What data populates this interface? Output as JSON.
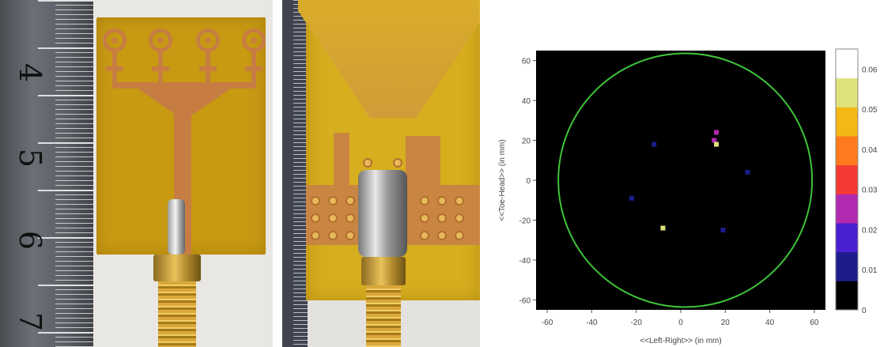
{
  "photos": {
    "front": {
      "ruler_numbers": [
        "4",
        "5",
        "6",
        "7"
      ]
    }
  },
  "colors": {
    "plot_background": "#000000",
    "circle": "#3ec43a"
  },
  "chart_data": {
    "type": "heatmap",
    "title": "",
    "xlabel": "<<Left-Right>> (in mm)",
    "ylabel": "<<Toe-Head>> (in mm)",
    "xlim": [
      -65,
      65
    ],
    "ylim": [
      -65,
      65
    ],
    "xticks": [
      -60,
      -40,
      -20,
      0,
      20,
      40,
      60
    ],
    "yticks": [
      -60,
      -40,
      -20,
      0,
      20,
      40,
      60
    ],
    "grid": false,
    "outline_circle": {
      "center": [
        2,
        0
      ],
      "radius": 57,
      "color": "#3ec43a"
    },
    "colorbar": {
      "range": [
        0,
        0.065
      ],
      "ticks": [
        0,
        0.01,
        0.02,
        0.03,
        0.04,
        0.05,
        0.06
      ],
      "tick_labels": [
        "0",
        "0.01",
        "0.02",
        "0.03",
        "0.04",
        "0.05",
        "0.06"
      ],
      "colors": [
        "#000000",
        "#1c1c8c",
        "#4a1fd0",
        "#b22ab0",
        "#f43a35",
        "#ff7a1c",
        "#f3b815",
        "#dfe27a",
        "#ffffff"
      ]
    },
    "points": [
      {
        "x": -12,
        "y": 18,
        "value": 0.012
      },
      {
        "x": -22,
        "y": -9,
        "value": 0.011
      },
      {
        "x": 16,
        "y": 24,
        "value": 0.025
      },
      {
        "x": 15,
        "y": 20,
        "value": 0.027
      },
      {
        "x": 16,
        "y": 18,
        "value": 0.058
      },
      {
        "x": 30,
        "y": 4,
        "value": 0.012
      },
      {
        "x": 19,
        "y": -25,
        "value": 0.011
      },
      {
        "x": -8,
        "y": -24,
        "value": 0.06
      }
    ]
  }
}
